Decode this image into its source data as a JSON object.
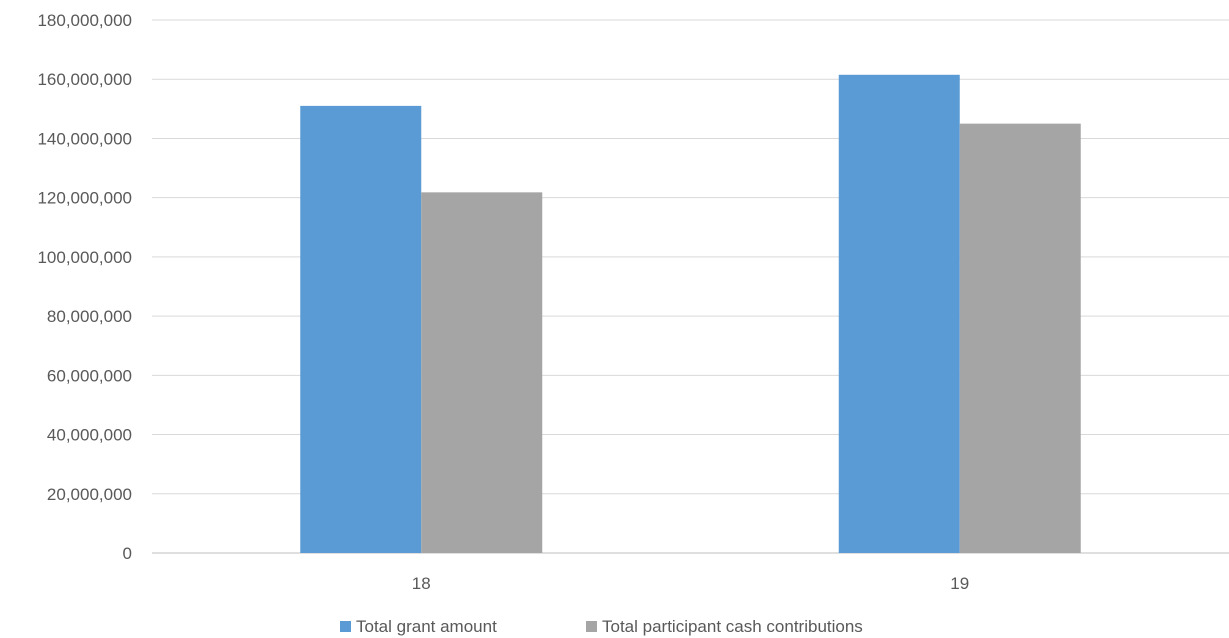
{
  "chart_data": {
    "type": "bar",
    "categories": [
      "18",
      "19"
    ],
    "series": [
      {
        "name": "Total grant amount",
        "color": "#5b9bd5",
        "values": [
          151000000,
          161500000
        ]
      },
      {
        "name": "Total participant cash contributions",
        "color": "#a5a5a5",
        "values": [
          121800000,
          145000000
        ]
      }
    ],
    "title": "",
    "xlabel": "",
    "ylabel": "",
    "ylim": [
      0,
      180000000
    ],
    "yticks": [
      "0",
      "20,000,000",
      "40,000,000",
      "60,000,000",
      "80,000,000",
      "100,000,000",
      "120,000,000",
      "140,000,000",
      "160,000,000",
      "180,000,000"
    ],
    "grid": true,
    "legend": "bottom-center"
  }
}
